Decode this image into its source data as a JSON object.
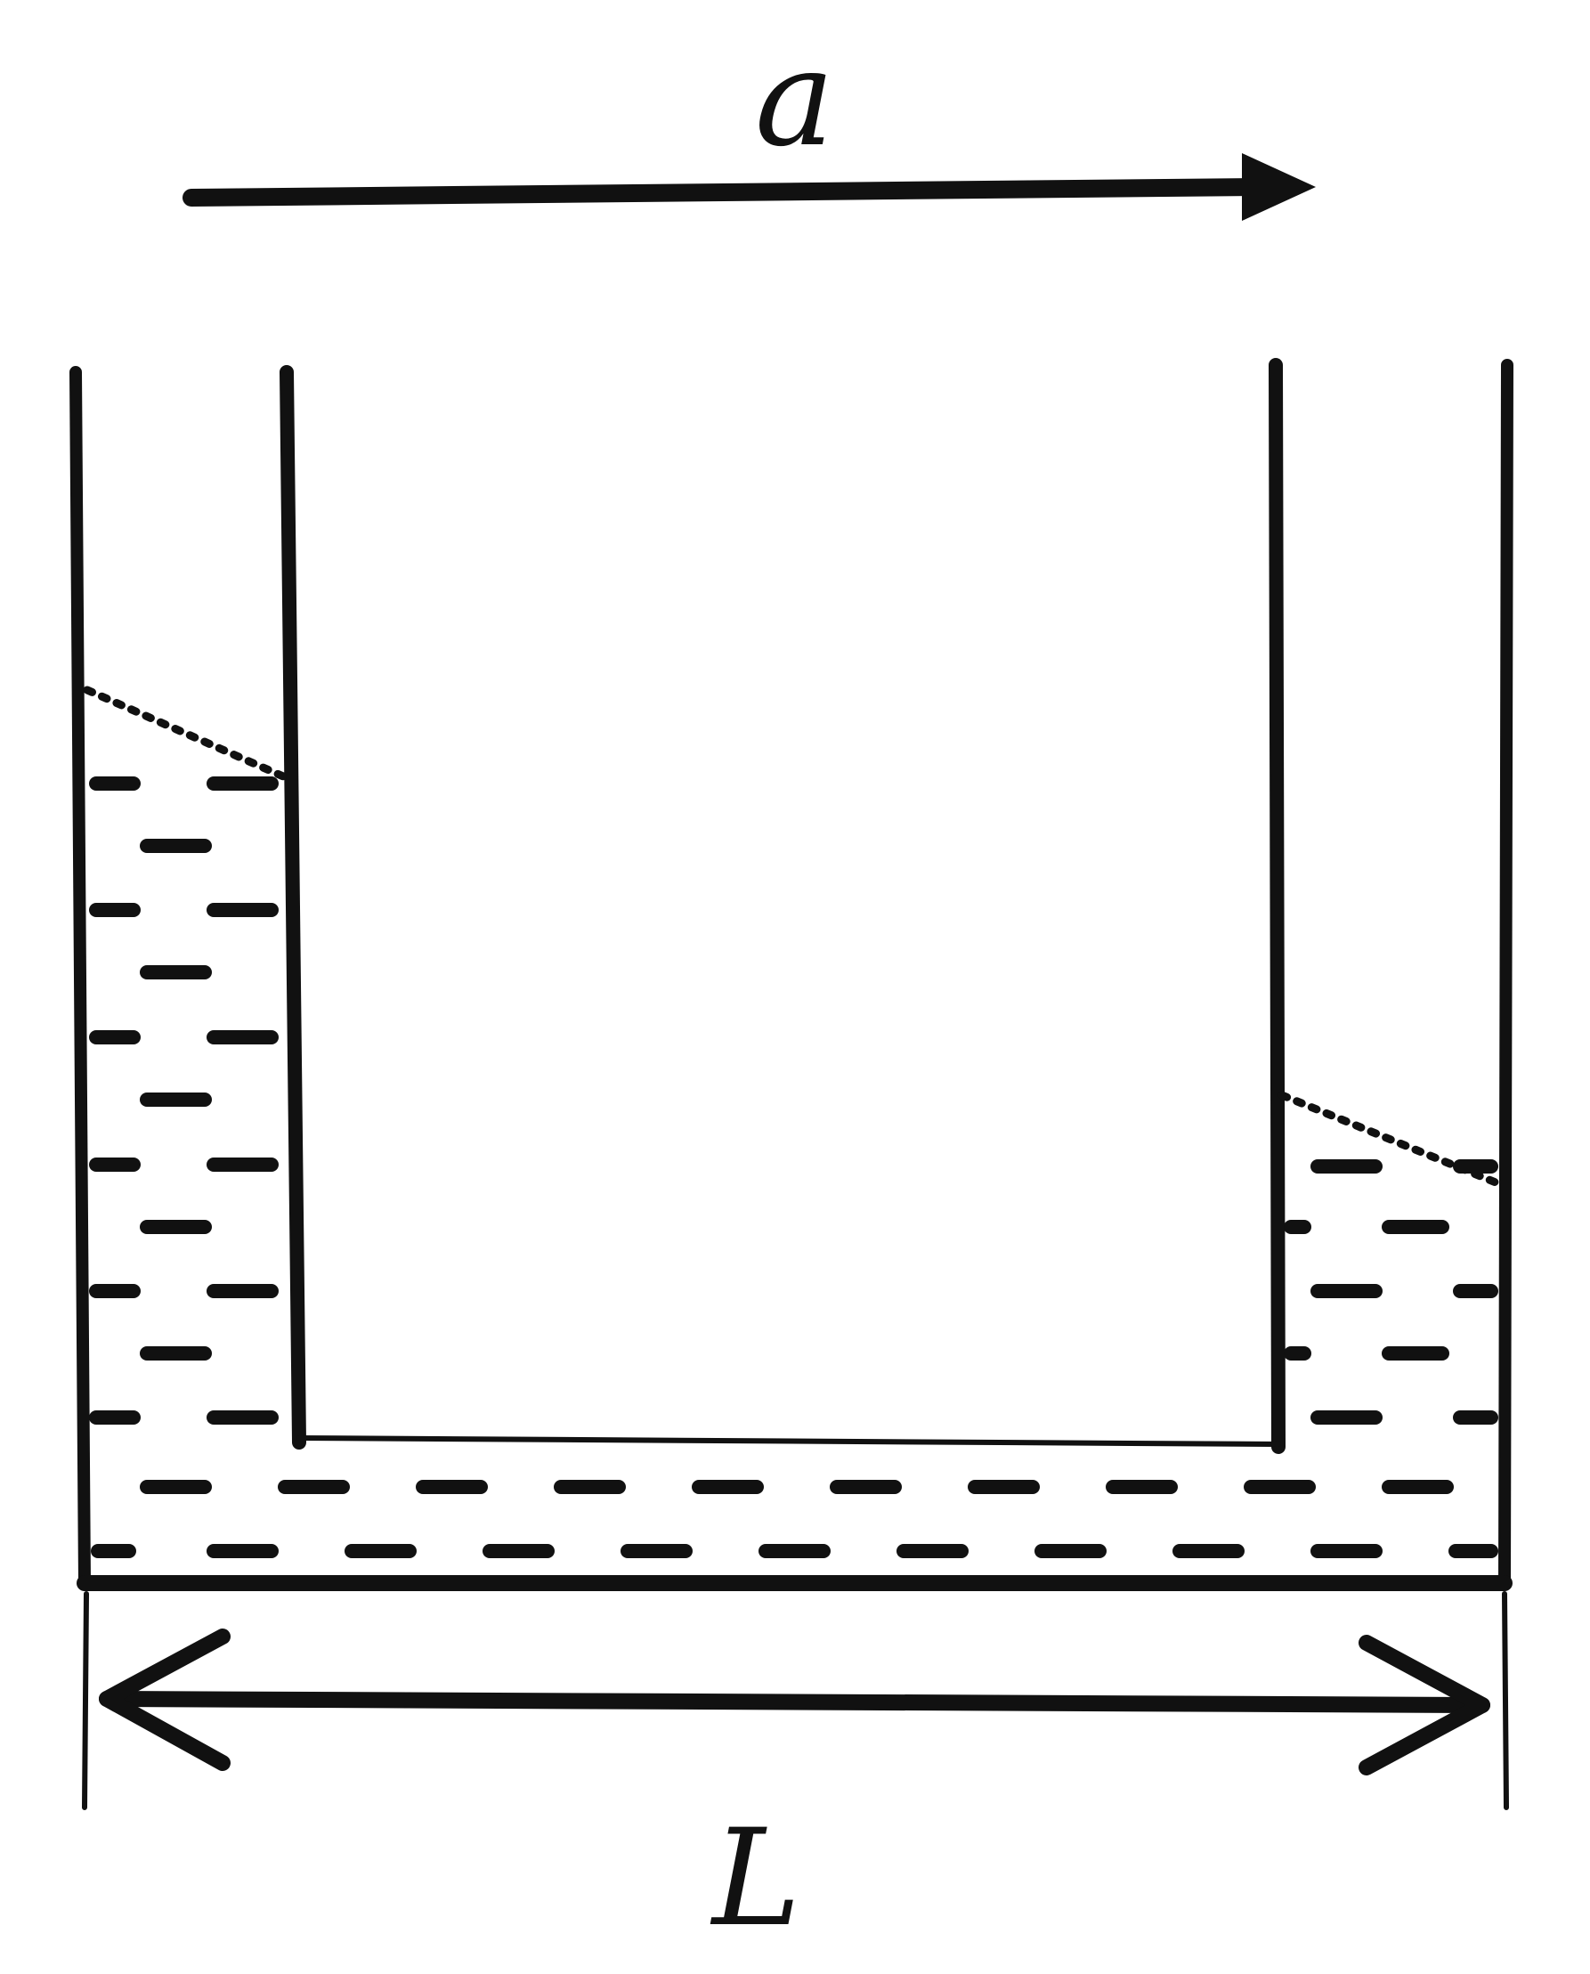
{
  "labels": {
    "acceleration": "a",
    "length": "L"
  },
  "colors": {
    "ink": "#111111",
    "background": "#ffffff"
  }
}
